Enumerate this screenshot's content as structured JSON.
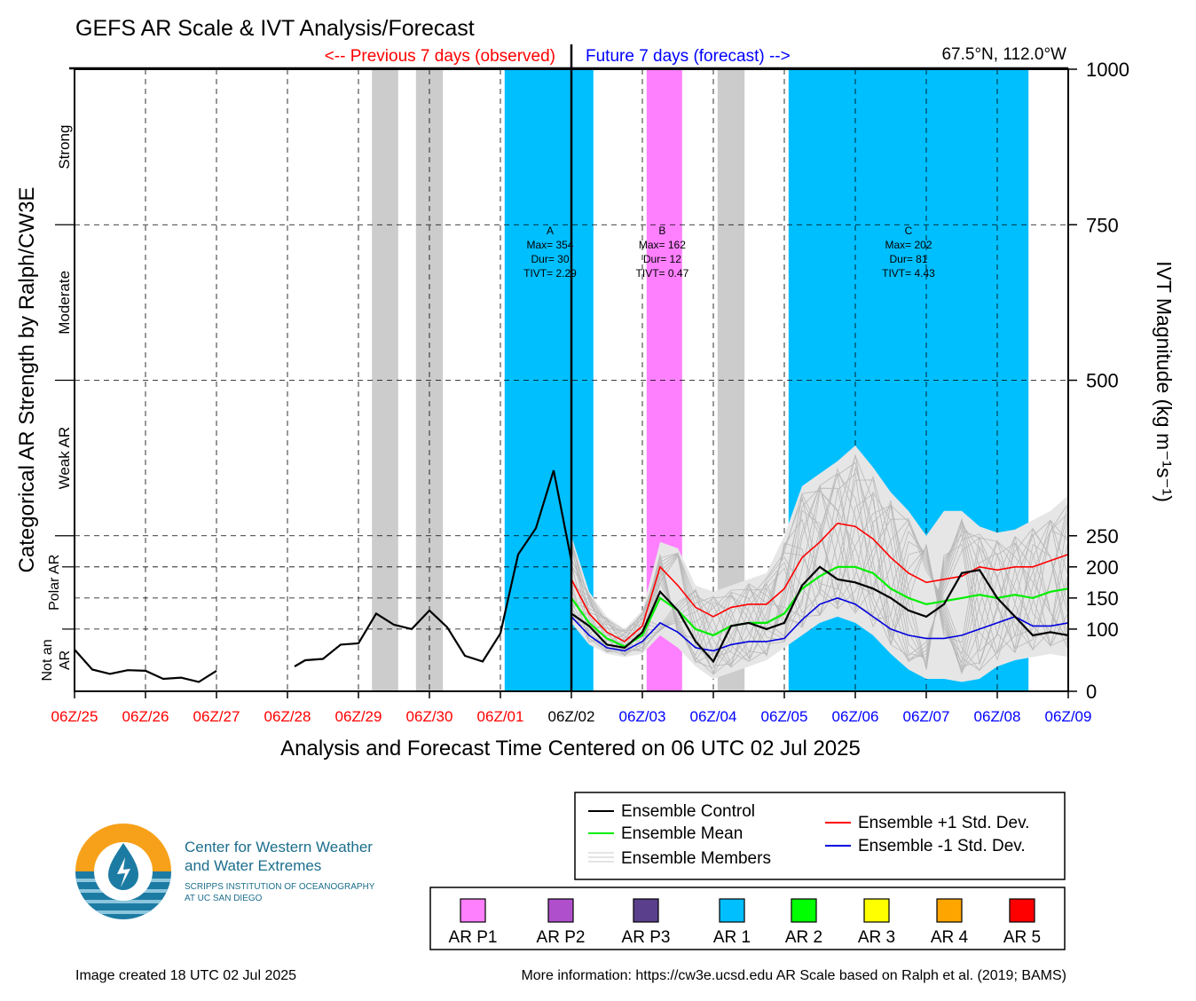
{
  "header": {
    "title": "GEFS AR Scale & IVT Analysis/Forecast",
    "previous_label": "<-- Previous 7 days (observed)",
    "future_label": "Future 7 days (forecast) -->",
    "location": "67.5°N, 112.0°W"
  },
  "axes": {
    "left_label": "Categorical AR Strength by Ralph/CW3E",
    "right_label": "IVT Magnitude (kg m⁻¹s⁻¹)",
    "x_label": "Analysis and Forecast Time Centered on 06 UTC 02 Jul 2025",
    "categories": [
      {
        "label": "Strong",
        "y_mid": 875
      },
      {
        "label": "Moderate",
        "y_mid": 625
      },
      {
        "label": "Weak AR",
        "y_mid": 375
      },
      {
        "label": "Polar AR",
        "y_mid": 175
      },
      {
        "label": "Not an AR",
        "y_mid": 50
      }
    ]
  },
  "legend": {
    "control": "Ensemble Control",
    "mean": "Ensemble Mean",
    "members": "Ensemble Members",
    "plus_std": "Ensemble +1 Std. Dev.",
    "minus_std": "Ensemble -1 Std. Dev."
  },
  "scale": [
    {
      "label": "AR P1",
      "color": "#FF80FF"
    },
    {
      "label": "AR P2",
      "color": "#B04FCC"
    },
    {
      "label": "AR P3",
      "color": "#5A3F8C"
    },
    {
      "label": "AR 1",
      "color": "#00BFFF"
    },
    {
      "label": "AR 2",
      "color": "#00FF00"
    },
    {
      "label": "AR 3",
      "color": "#FFFF00"
    },
    {
      "label": "AR 4",
      "color": "#FFA500"
    },
    {
      "label": "AR 5",
      "color": "#FF0000"
    }
  ],
  "logo": {
    "line1": "Center for Western Weather",
    "line2": "and Water Extremes",
    "line3": "SCRIPPS INSTITUTION OF OCEANOGRAPHY",
    "line4": "AT UC SAN DIEGO"
  },
  "footer": {
    "created": "Image created 18 UTC 02 Jul 2025",
    "info": "More information: https://cw3e.ucsd.edu AR Scale based on Ralph et al. (2019; BAMS)"
  },
  "chart_data": {
    "type": "line",
    "x_unit": "days",
    "xlim": [
      0,
      14
    ],
    "ylim": [
      0,
      1000
    ],
    "x_ticks": [
      {
        "x": 0,
        "label": "06Z/25",
        "color": "#FF0000"
      },
      {
        "x": 1,
        "label": "06Z/26",
        "color": "#FF0000"
      },
      {
        "x": 2,
        "label": "06Z/27",
        "color": "#FF0000"
      },
      {
        "x": 3,
        "label": "06Z/28",
        "color": "#FF0000"
      },
      {
        "x": 4,
        "label": "06Z/29",
        "color": "#FF0000"
      },
      {
        "x": 5,
        "label": "06Z/30",
        "color": "#FF0000"
      },
      {
        "x": 6,
        "label": "06Z/01",
        "color": "#FF0000"
      },
      {
        "x": 7,
        "label": "06Z/02",
        "color": "#000000"
      },
      {
        "x": 8,
        "label": "06Z/03",
        "color": "#0000FF"
      },
      {
        "x": 9,
        "label": "06Z/04",
        "color": "#0000FF"
      },
      {
        "x": 10,
        "label": "06Z/05",
        "color": "#0000FF"
      },
      {
        "x": 11,
        "label": "06Z/06",
        "color": "#0000FF"
      },
      {
        "x": 12,
        "label": "06Z/07",
        "color": "#0000FF"
      },
      {
        "x": 13,
        "label": "06Z/08",
        "color": "#0000FF"
      },
      {
        "x": 14,
        "label": "06Z/09",
        "color": "#0000FF"
      }
    ],
    "y_ticks": [
      0,
      100,
      150,
      200,
      250,
      500,
      750,
      1000
    ],
    "y_gridlines": [
      100,
      150,
      200,
      250,
      500,
      750
    ],
    "gray_shading": [
      [
        4.19,
        4.56
      ],
      [
        4.81,
        5.19
      ],
      [
        9.06,
        9.44
      ],
      [
        13.06,
        13.19
      ]
    ],
    "ar_periods": [
      {
        "start": 6.06,
        "end": 7.31,
        "color": "#00BFFF",
        "label": "A",
        "max": "Max= 354",
        "dur": "Dur= 30",
        "tivt": "TIVT= 2.29",
        "label_x": 6.7
      },
      {
        "start": 8.06,
        "end": 8.56,
        "color": "#FF80FF",
        "label": "B",
        "max": "Max= 162",
        "dur": "Dur= 12",
        "tivt": "TIVT= 0.47",
        "label_x": 8.28
      },
      {
        "start": 10.06,
        "end": 13.44,
        "color": "#00BFFF",
        "label": "C",
        "max": "Max= 202",
        "dur": "Dur= 81",
        "tivt": "TIVT= 4.43",
        "label_x": 11.75
      }
    ],
    "now": 7,
    "control_observed": [
      [
        [
          0,
          67
        ],
        [
          0.25,
          35
        ],
        [
          0.5,
          28
        ],
        [
          0.75,
          34
        ],
        [
          1,
          33
        ],
        [
          1.25,
          20
        ],
        [
          1.5,
          22
        ],
        [
          1.75,
          15
        ],
        [
          2,
          33
        ]
      ],
      [
        [
          3.1,
          40
        ],
        [
          3.25,
          50
        ],
        [
          3.5,
          52
        ],
        [
          3.75,
          75
        ],
        [
          4,
          77
        ],
        [
          4.25,
          125
        ],
        [
          4.5,
          107
        ],
        [
          4.75,
          100
        ],
        [
          5,
          130
        ],
        [
          5.25,
          103
        ],
        [
          5.5,
          57
        ],
        [
          5.75,
          48
        ],
        [
          6,
          93
        ],
        [
          6.25,
          220
        ],
        [
          6.5,
          262
        ],
        [
          6.75,
          355
        ],
        [
          7,
          210
        ]
      ]
    ],
    "series": [
      {
        "name": "Ensemble Control",
        "color": "#000000",
        "width": 2.2,
        "points": [
          [
            7,
            125
          ],
          [
            7.25,
            105
          ],
          [
            7.5,
            75
          ],
          [
            7.75,
            70
          ],
          [
            8,
            95
          ],
          [
            8.25,
            160
          ],
          [
            8.5,
            130
          ],
          [
            8.75,
            80
          ],
          [
            9,
            48
          ],
          [
            9.25,
            105
          ],
          [
            9.5,
            110
          ],
          [
            9.75,
            100
          ],
          [
            10,
            110
          ],
          [
            10.25,
            170
          ],
          [
            10.5,
            200
          ],
          [
            10.75,
            180
          ],
          [
            11,
            175
          ],
          [
            11.25,
            165
          ],
          [
            11.5,
            150
          ],
          [
            11.75,
            130
          ],
          [
            12,
            120
          ],
          [
            12.25,
            140
          ],
          [
            12.5,
            190
          ],
          [
            12.75,
            195
          ],
          [
            13,
            150
          ],
          [
            13.25,
            120
          ],
          [
            13.5,
            90
          ],
          [
            13.75,
            95
          ],
          [
            14,
            90
          ]
        ]
      },
      {
        "name": "Ensemble Mean",
        "color": "#00EE00",
        "width": 2.2,
        "points": [
          [
            7,
            150
          ],
          [
            7.25,
            110
          ],
          [
            7.5,
            85
          ],
          [
            7.75,
            72
          ],
          [
            8,
            90
          ],
          [
            8.25,
            150
          ],
          [
            8.5,
            130
          ],
          [
            8.75,
            100
          ],
          [
            9,
            90
          ],
          [
            9.25,
            105
          ],
          [
            9.5,
            110
          ],
          [
            9.75,
            110
          ],
          [
            10,
            125
          ],
          [
            10.25,
            165
          ],
          [
            10.5,
            185
          ],
          [
            10.75,
            200
          ],
          [
            11,
            200
          ],
          [
            11.25,
            190
          ],
          [
            11.5,
            165
          ],
          [
            11.75,
            150
          ],
          [
            12,
            140
          ],
          [
            12.25,
            145
          ],
          [
            12.5,
            150
          ],
          [
            12.75,
            155
          ],
          [
            13,
            150
          ],
          [
            13.25,
            155
          ],
          [
            13.5,
            150
          ],
          [
            13.75,
            160
          ],
          [
            14,
            165
          ]
        ]
      },
      {
        "name": "Ensemble +1 Std. Dev.",
        "color": "#FF0000",
        "width": 1.6,
        "points": [
          [
            7,
            180
          ],
          [
            7.25,
            125
          ],
          [
            7.5,
            95
          ],
          [
            7.75,
            80
          ],
          [
            8,
            105
          ],
          [
            8.25,
            200
          ],
          [
            8.5,
            170
          ],
          [
            8.75,
            135
          ],
          [
            9,
            120
          ],
          [
            9.25,
            135
          ],
          [
            9.5,
            140
          ],
          [
            9.75,
            140
          ],
          [
            10,
            165
          ],
          [
            10.25,
            215
          ],
          [
            10.5,
            240
          ],
          [
            10.75,
            270
          ],
          [
            11,
            265
          ],
          [
            11.25,
            245
          ],
          [
            11.5,
            215
          ],
          [
            11.75,
            190
          ],
          [
            12,
            175
          ],
          [
            12.25,
            180
          ],
          [
            12.5,
            185
          ],
          [
            12.75,
            200
          ],
          [
            13,
            195
          ],
          [
            13.25,
            200
          ],
          [
            13.5,
            200
          ],
          [
            13.75,
            210
          ],
          [
            14,
            220
          ]
        ]
      },
      {
        "name": "Ensemble -1 Std. Dev.",
        "color": "#0000DD",
        "width": 1.6,
        "points": [
          [
            7,
            120
          ],
          [
            7.25,
            90
          ],
          [
            7.5,
            70
          ],
          [
            7.75,
            65
          ],
          [
            8,
            80
          ],
          [
            8.25,
            110
          ],
          [
            8.5,
            95
          ],
          [
            8.75,
            70
          ],
          [
            9,
            65
          ],
          [
            9.25,
            75
          ],
          [
            9.5,
            80
          ],
          [
            9.75,
            80
          ],
          [
            10,
            85
          ],
          [
            10.25,
            115
          ],
          [
            10.5,
            140
          ],
          [
            10.75,
            150
          ],
          [
            11,
            140
          ],
          [
            11.25,
            120
          ],
          [
            11.5,
            100
          ],
          [
            11.75,
            90
          ],
          [
            12,
            85
          ],
          [
            12.25,
            85
          ],
          [
            12.5,
            90
          ],
          [
            12.75,
            100
          ],
          [
            13,
            110
          ],
          [
            13.25,
            120
          ],
          [
            13.5,
            105
          ],
          [
            13.75,
            105
          ],
          [
            14,
            110
          ]
        ]
      }
    ],
    "members_envelope": {
      "upper": [
        [
          7,
          250
        ],
        [
          7.25,
          160
        ],
        [
          7.5,
          120
        ],
        [
          7.75,
          100
        ],
        [
          8,
          130
        ],
        [
          8.25,
          240
        ],
        [
          8.5,
          230
        ],
        [
          8.75,
          170
        ],
        [
          9,
          160
        ],
        [
          9.25,
          170
        ],
        [
          9.5,
          180
        ],
        [
          9.75,
          190
        ],
        [
          10,
          250
        ],
        [
          10.25,
          330
        ],
        [
          10.5,
          350
        ],
        [
          10.75,
          370
        ],
        [
          11,
          395
        ],
        [
          11.25,
          360
        ],
        [
          11.5,
          320
        ],
        [
          11.75,
          290
        ],
        [
          12,
          250
        ],
        [
          12.25,
          290
        ],
        [
          12.5,
          290
        ],
        [
          12.75,
          265
        ],
        [
          13,
          255
        ],
        [
          13.25,
          260
        ],
        [
          13.5,
          275
        ],
        [
          13.75,
          290
        ],
        [
          14,
          315
        ]
      ],
      "lower": [
        [
          7,
          110
        ],
        [
          7.25,
          75
        ],
        [
          7.5,
          60
        ],
        [
          7.75,
          55
        ],
        [
          8,
          60
        ],
        [
          8.25,
          90
        ],
        [
          8.5,
          70
        ],
        [
          8.75,
          40
        ],
        [
          9,
          20
        ],
        [
          9.25,
          30
        ],
        [
          9.5,
          40
        ],
        [
          9.75,
          50
        ],
        [
          10,
          70
        ],
        [
          10.25,
          90
        ],
        [
          10.5,
          110
        ],
        [
          10.75,
          120
        ],
        [
          11,
          110
        ],
        [
          11.25,
          90
        ],
        [
          11.5,
          60
        ],
        [
          11.75,
          35
        ],
        [
          12,
          20
        ],
        [
          12.25,
          20
        ],
        [
          12.5,
          15
        ],
        [
          12.75,
          20
        ],
        [
          13,
          40
        ],
        [
          13.25,
          50
        ],
        [
          13.5,
          55
        ],
        [
          13.75,
          60
        ],
        [
          14,
          55
        ]
      ]
    }
  }
}
